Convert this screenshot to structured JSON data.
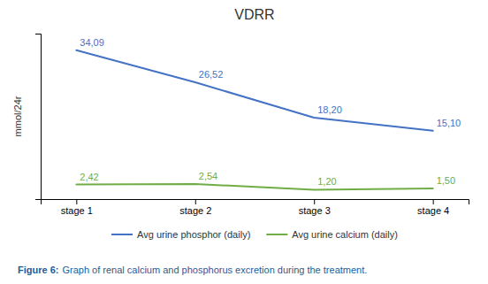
{
  "chart_data": {
    "type": "line",
    "title": "VDRR",
    "y_label": "mmol/24r",
    "categories": [
      "stage 1",
      "stage 2",
      "stage 3",
      "stage 4"
    ],
    "series": [
      {
        "name": "Avg urine phosphor (daily)",
        "color": "#4472C4",
        "line_style": "solid",
        "values": [
          34.09,
          26.52,
          18.2,
          15.1
        ],
        "value_labels": [
          "34,09",
          "26,52",
          "18,20",
          "15,10"
        ]
      },
      {
        "name": "Avg urine calcium (daily)",
        "color": "#70AD47",
        "line_style": "solid",
        "values": [
          2.42,
          2.54,
          1.2,
          1.5
        ],
        "value_labels": [
          "2,42",
          "2,54",
          "1,20",
          "1,50"
        ]
      }
    ],
    "ylim": [
      -1,
      38
    ],
    "grid": false,
    "legend": "bottom",
    "data_labels": true,
    "tick_labels": "x",
    "caption": [
      "Figure 6:",
      "Graph of renal calcium and phosphorus excretion during the treatment."
    ]
  }
}
